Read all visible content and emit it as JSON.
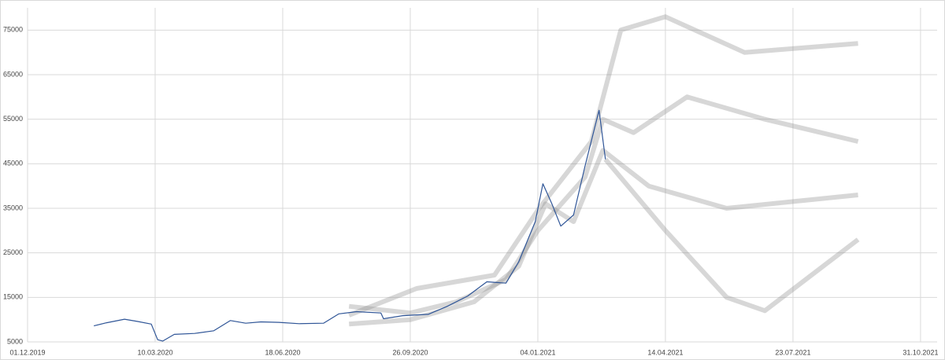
{
  "chart_data": {
    "type": "line",
    "xlim": [
      "2019-12-01",
      "2021-11-13"
    ],
    "ylim": [
      5000,
      80000
    ],
    "yticks": [
      5000,
      15000,
      25000,
      35000,
      45000,
      55000,
      65000,
      75000
    ],
    "xticks": [
      {
        "value": "2019-12-01",
        "label": "01.12.2019"
      },
      {
        "value": "2020-03-10",
        "label": "10.03.2020"
      },
      {
        "value": "2020-06-18",
        "label": "18.06.2020"
      },
      {
        "value": "2020-09-26",
        "label": "26.09.2020"
      },
      {
        "value": "2021-01-04",
        "label": "04.01.2021"
      },
      {
        "value": "2021-04-14",
        "label": "14.04.2021"
      },
      {
        "value": "2021-07-23",
        "label": "23.07.2021"
      },
      {
        "value": "2021-10-31",
        "label": "31.10.2021"
      }
    ],
    "grid": true,
    "series": [
      {
        "color": "#8c8c8c",
        "x": [
          "2020-08-09",
          "2020-09-26",
          "2020-11-01",
          "2020-12-10",
          "2021-01-04",
          "2021-02-10",
          "2021-02-24",
          "2021-03-20",
          "2021-05-01",
          "2021-07-01",
          "2021-09-12"
        ],
        "values": [
          13000,
          11500,
          14000,
          19000,
          30000,
          42000,
          55000,
          52000,
          60000,
          55000,
          50000
        ]
      },
      {
        "color": "#8c8c8c",
        "x": [
          "2020-08-09",
          "2020-09-26",
          "2020-11-15",
          "2020-12-20",
          "2021-01-10",
          "2021-02-01",
          "2021-02-24",
          "2021-04-01",
          "2021-06-01",
          "2021-09-12"
        ],
        "values": [
          9000,
          10000,
          14000,
          22000,
          36000,
          32000,
          48000,
          40000,
          35000,
          38000
        ]
      },
      {
        "color": "#8c8c8c",
        "x": [
          "2020-08-09",
          "2020-10-01",
          "2020-12-01",
          "2021-01-05",
          "2021-02-15",
          "2021-03-10",
          "2021-04-14",
          "2021-06-15",
          "2021-09-12"
        ],
        "values": [
          11000,
          17000,
          20000,
          35000,
          50000,
          75000,
          78000,
          70000,
          72000
        ]
      },
      {
        "color": "#8c8c8c",
        "x": [
          "2021-02-26",
          "2021-04-14",
          "2021-06-01",
          "2021-07-01",
          "2021-09-12"
        ],
        "values": [
          46000,
          30000,
          15000,
          12000,
          28000
        ]
      },
      {
        "color": "#2f5597",
        "x": [
          "2020-01-22",
          "2020-02-01",
          "2020-02-15",
          "2020-02-25",
          "2020-03-07",
          "2020-03-12",
          "2020-03-16",
          "2020-03-25",
          "2020-04-10",
          "2020-04-25",
          "2020-05-08",
          "2020-05-20",
          "2020-06-01",
          "2020-06-15",
          "2020-07-01",
          "2020-07-20",
          "2020-08-01",
          "2020-08-15",
          "2020-09-03",
          "2020-09-05",
          "2020-09-20",
          "2020-10-10",
          "2020-10-25",
          "2020-11-10",
          "2020-11-25",
          "2020-12-10",
          "2020-12-20",
          "2021-01-02",
          "2021-01-08",
          "2021-01-15",
          "2021-01-22",
          "2021-02-01",
          "2021-02-10",
          "2021-02-21",
          "2021-02-26"
        ],
        "values": [
          8600,
          9300,
          10100,
          9600,
          9000,
          5500,
          5200,
          6700,
          6900,
          7500,
          9800,
          9200,
          9500,
          9400,
          9100,
          9200,
          11300,
          11800,
          11500,
          10200,
          10900,
          11200,
          13000,
          15300,
          18500,
          18200,
          23000,
          32000,
          40500,
          36000,
          31000,
          33500,
          44500,
          57000,
          46000
        ]
      }
    ]
  }
}
